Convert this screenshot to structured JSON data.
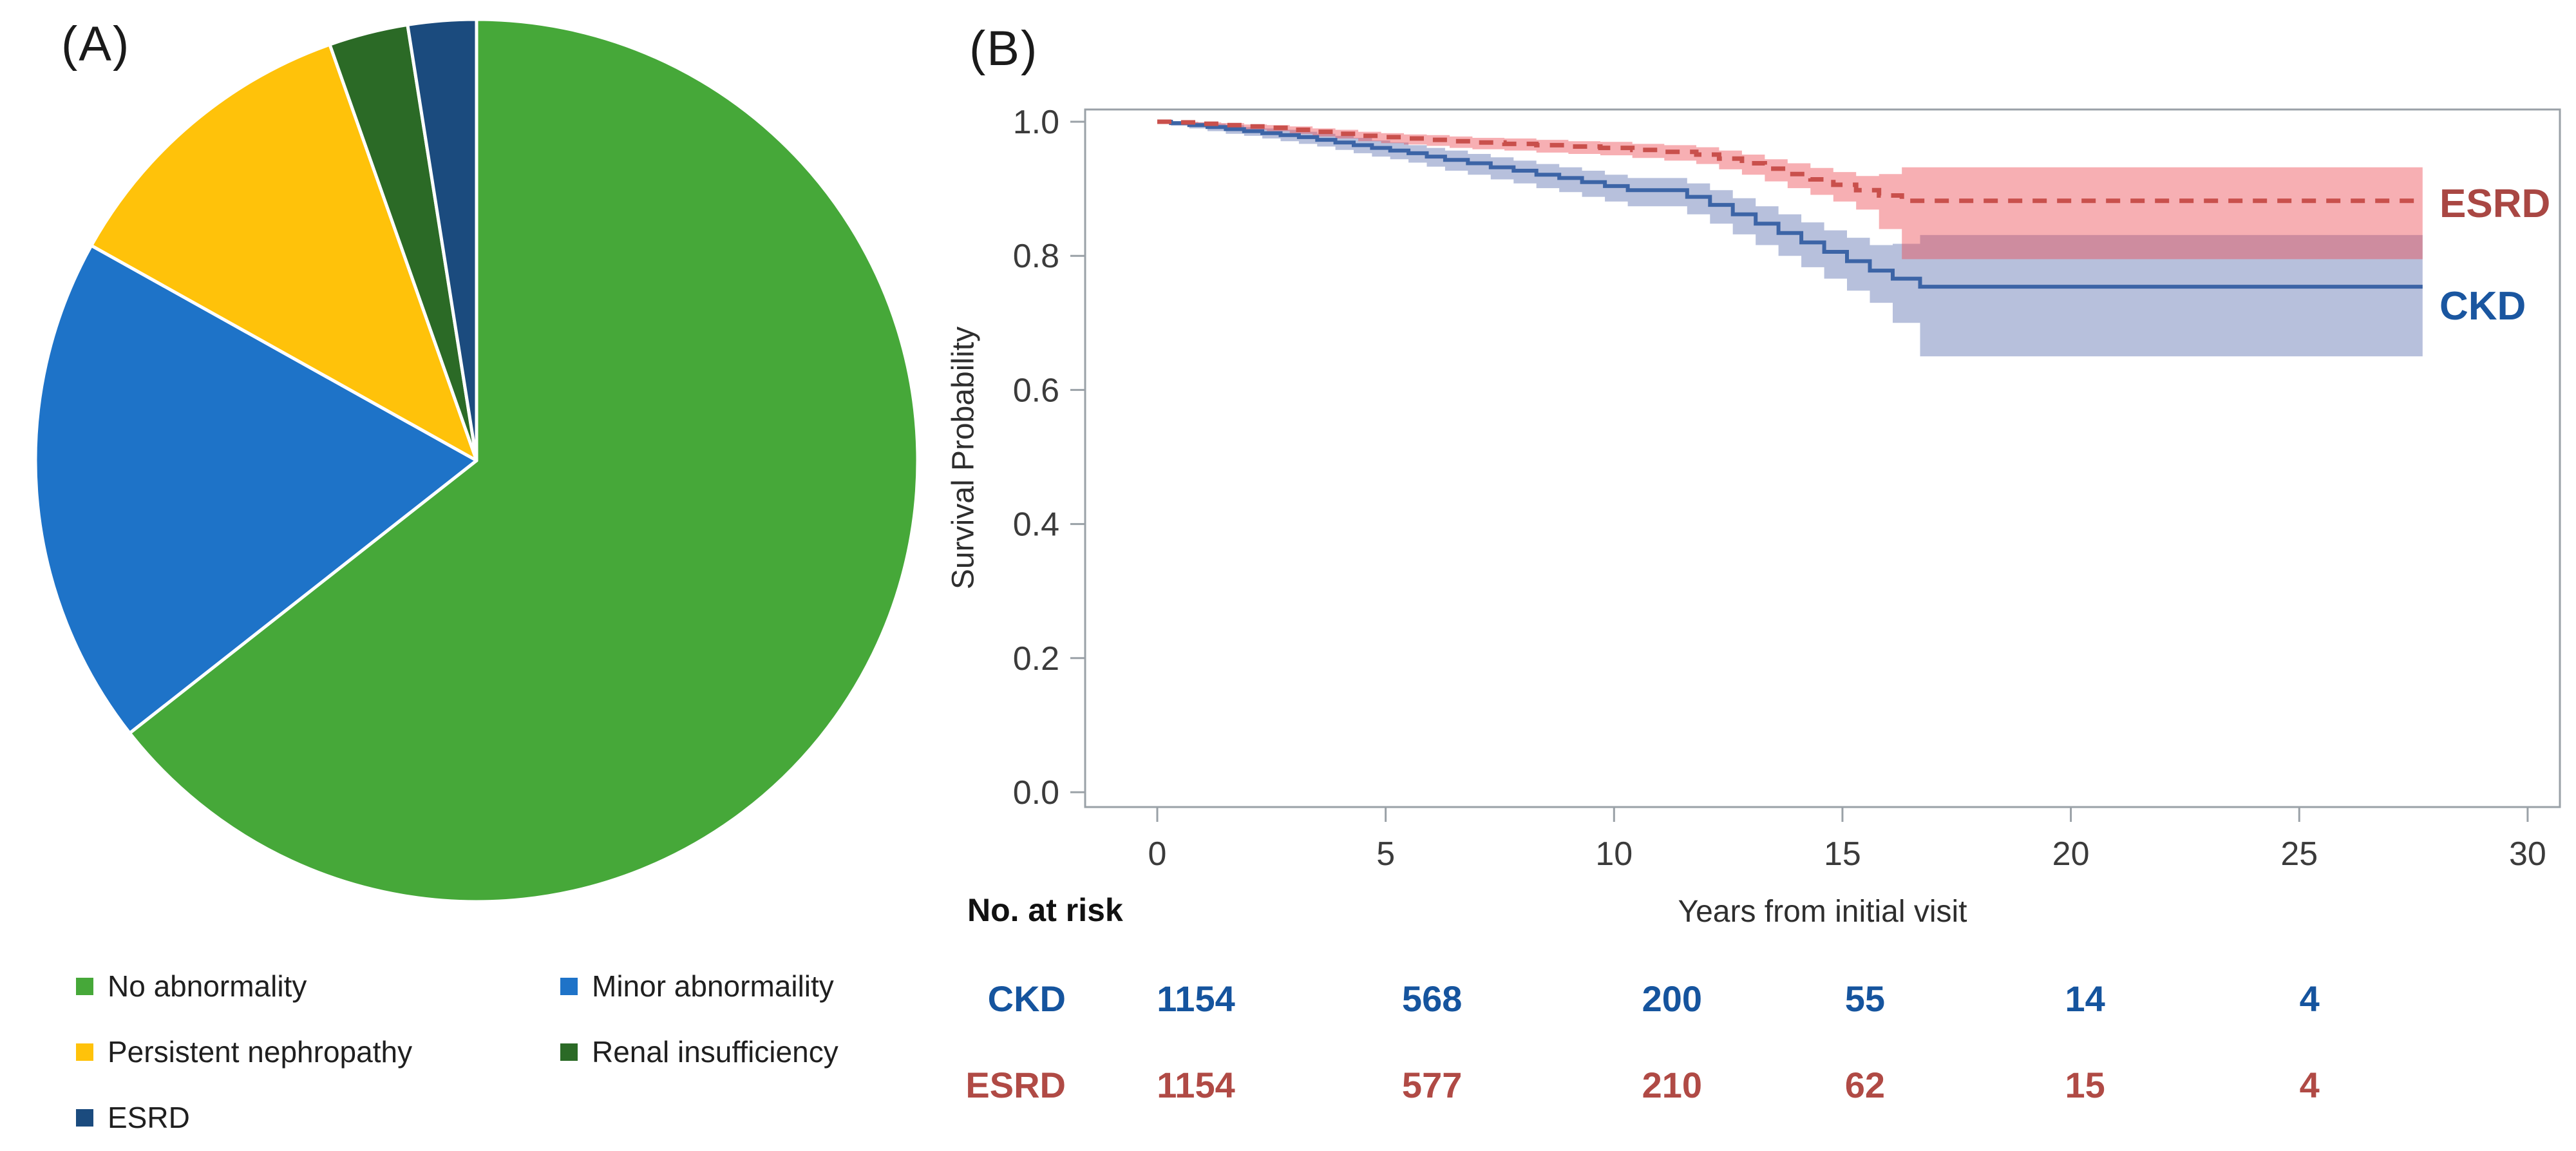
{
  "panel_a": {
    "label": "(A)",
    "legend": {
      "items": [
        {
          "label": "No abnormality",
          "color": "#46A839"
        },
        {
          "label": "Minor abnormaility",
          "color": "#1E73C8"
        },
        {
          "label": "Persistent nephropathy",
          "color": "#FFC20A"
        },
        {
          "label": "Renal insufficiency",
          "color": "#2B6A26"
        },
        {
          "label": "ESRD",
          "color": "#1B4B7E"
        }
      ]
    }
  },
  "panel_b": {
    "label": "(B)",
    "ylabel": "Survival Probability",
    "xlabel": "Years from initial visit",
    "risk_title": "No. at risk",
    "series_label_esrd": "ESRD",
    "series_label_ckd": "CKD"
  },
  "chart_data": [
    {
      "type": "pie",
      "panel": "A",
      "categories": [
        "No abnormality",
        "Minor abnormaility",
        "Persistent nephropathy",
        "Renal insufficiency",
        "ESRD"
      ],
      "values": [
        64.4,
        18.7,
        11.5,
        2.9,
        2.5
      ],
      "colors": [
        "#46A839",
        "#1E73C8",
        "#FFC20A",
        "#2B6A26",
        "#1B4B7E"
      ],
      "start_angle_deg": 0,
      "direction": "clockwise",
      "slice_gap_color": "#ffffff",
      "legend_position": "bottom-left, two columns"
    },
    {
      "type": "line",
      "subtype": "kaplan-meier-step",
      "panel": "B",
      "xlabel": "Years from initial visit",
      "ylabel": "Survival Probability",
      "xlim": [
        -1.6,
        30.7
      ],
      "ylim": [
        -0.022,
        1.018
      ],
      "x_ticks": [
        0,
        5,
        10,
        15,
        20,
        25,
        30
      ],
      "y_ticks": [
        "1.0",
        "0.8",
        "0.6",
        "0.4",
        "0.2",
        "0.0"
      ],
      "grid": false,
      "frame_color": "#9AA1A7",
      "tick_label_color": "#3B3B3B",
      "series": [
        {
          "name": "ESRD",
          "line_style": "dashed",
          "line_color": "#C9504C",
          "band_color": "rgba(237,72,81,0.44)",
          "label_color": "#A94743",
          "steps": [
            [
              0.0,
              1.0,
              1.0,
              1.0
            ],
            [
              0.4,
              0.999,
              0.997,
              1.0
            ],
            [
              0.9,
              0.997,
              0.994,
              0.999
            ],
            [
              1.4,
              0.995,
              0.991,
              0.998
            ],
            [
              1.9,
              0.993,
              0.988,
              0.996
            ],
            [
              2.4,
              0.991,
              0.986,
              0.995
            ],
            [
              2.9,
              0.988,
              0.982,
              0.993
            ],
            [
              3.4,
              0.985,
              0.978,
              0.99
            ],
            [
              3.9,
              0.982,
              0.975,
              0.988
            ],
            [
              4.4,
              0.979,
              0.971,
              0.985
            ],
            [
              4.9,
              0.977,
              0.968,
              0.983
            ],
            [
              5.4,
              0.975,
              0.966,
              0.981
            ],
            [
              5.9,
              0.973,
              0.964,
              0.98
            ],
            [
              6.4,
              0.971,
              0.961,
              0.978
            ],
            [
              6.9,
              0.969,
              0.959,
              0.976
            ],
            [
              7.6,
              0.967,
              0.957,
              0.975
            ],
            [
              8.3,
              0.965,
              0.954,
              0.973
            ],
            [
              9.0,
              0.963,
              0.952,
              0.971
            ],
            [
              9.7,
              0.961,
              0.95,
              0.97
            ],
            [
              10.4,
              0.958,
              0.946,
              0.967
            ],
            [
              11.1,
              0.955,
              0.942,
              0.965
            ],
            [
              11.8,
              0.951,
              0.937,
              0.962
            ],
            [
              12.3,
              0.945,
              0.929,
              0.957
            ],
            [
              12.8,
              0.938,
              0.921,
              0.951
            ],
            [
              13.3,
              0.93,
              0.911,
              0.944
            ],
            [
              13.8,
              0.922,
              0.901,
              0.938
            ],
            [
              14.3,
              0.914,
              0.891,
              0.931
            ],
            [
              14.8,
              0.906,
              0.881,
              0.925
            ],
            [
              15.3,
              0.898,
              0.869,
              0.919
            ],
            [
              15.8,
              0.89,
              0.84,
              0.922
            ],
            [
              16.3,
              0.882,
              0.795,
              0.932
            ],
            [
              27.7,
              0.882,
              0.795,
              0.932
            ]
          ]
        },
        {
          "name": "CKD",
          "line_style": "solid",
          "line_color": "#3C64A6",
          "band_color": "#B7C0DC",
          "label_color": "#1A56A0",
          "steps": [
            [
              0.0,
              1.0,
              1.0,
              1.0
            ],
            [
              0.3,
              0.998,
              0.994,
              1.0
            ],
            [
              0.7,
              0.995,
              0.99,
              0.999
            ],
            [
              1.1,
              0.992,
              0.986,
              0.997
            ],
            [
              1.5,
              0.989,
              0.982,
              0.995
            ],
            [
              1.9,
              0.986,
              0.979,
              0.992
            ],
            [
              2.3,
              0.983,
              0.975,
              0.99
            ],
            [
              2.7,
              0.98,
              0.971,
              0.988
            ],
            [
              3.1,
              0.977,
              0.967,
              0.985
            ],
            [
              3.5,
              0.973,
              0.963,
              0.982
            ],
            [
              3.9,
              0.969,
              0.958,
              0.979
            ],
            [
              4.3,
              0.965,
              0.953,
              0.976
            ],
            [
              4.7,
              0.961,
              0.948,
              0.972
            ],
            [
              5.1,
              0.957,
              0.944,
              0.969
            ],
            [
              5.5,
              0.953,
              0.939,
              0.965
            ],
            [
              5.9,
              0.948,
              0.933,
              0.961
            ],
            [
              6.3,
              0.943,
              0.927,
              0.957
            ],
            [
              6.8,
              0.938,
              0.921,
              0.952
            ],
            [
              7.3,
              0.932,
              0.914,
              0.947
            ],
            [
              7.8,
              0.927,
              0.908,
              0.942
            ],
            [
              8.3,
              0.921,
              0.901,
              0.937
            ],
            [
              8.8,
              0.916,
              0.895,
              0.932
            ],
            [
              9.3,
              0.91,
              0.888,
              0.927
            ],
            [
              9.8,
              0.904,
              0.881,
              0.921
            ],
            [
              10.3,
              0.898,
              0.874,
              0.916
            ],
            [
              11.6,
              0.888,
              0.862,
              0.908
            ],
            [
              12.1,
              0.876,
              0.848,
              0.898
            ],
            [
              12.6,
              0.862,
              0.832,
              0.886
            ],
            [
              13.1,
              0.848,
              0.816,
              0.874
            ],
            [
              13.6,
              0.834,
              0.8,
              0.862
            ],
            [
              14.1,
              0.82,
              0.783,
              0.85
            ],
            [
              14.6,
              0.806,
              0.766,
              0.838
            ],
            [
              15.1,
              0.792,
              0.748,
              0.827
            ],
            [
              15.6,
              0.778,
              0.73,
              0.816
            ],
            [
              16.1,
              0.766,
              0.7,
              0.818
            ],
            [
              16.7,
              0.754,
              0.65,
              0.831
            ],
            [
              27.7,
              0.754,
              0.65,
              0.831
            ]
          ]
        }
      ],
      "risk_table": {
        "title": "No. at risk",
        "times": [
          0,
          5,
          10,
          15,
          20,
          25
        ],
        "rows": [
          {
            "name": "CKD",
            "color": "#15549E",
            "values": [
              1154,
              568,
              200,
              55,
              14,
              4
            ]
          },
          {
            "name": "ESRD",
            "color": "#B04A45",
            "values": [
              1154,
              577,
              210,
              62,
              15,
              4
            ]
          }
        ]
      }
    }
  ]
}
